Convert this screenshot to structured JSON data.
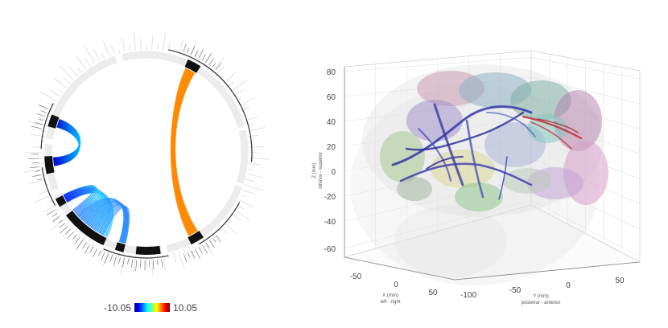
{
  "chart_data": [
    {
      "type": "other",
      "subtype": "connectogram",
      "title": "",
      "colorbar": {
        "min_label": "-10.05",
        "max_label": "10.05",
        "min": -10.05,
        "max": 10.05,
        "colormap": "jet"
      },
      "bundles": [
        {
          "name": "upper-left",
          "color_start": "#0000cc",
          "color_end": "#00ccff"
        },
        {
          "name": "right",
          "color": "#ff8c00"
        },
        {
          "name": "lower-left",
          "color_start": "#1040ff",
          "color_end": "#33ccff"
        }
      ]
    },
    {
      "type": "other",
      "subtype": "3d-brain-tractography",
      "title": "",
      "zlabel": [
        "Z (mm)",
        "inferior - superior"
      ],
      "xlabel": [
        "X (mm)",
        "left - right"
      ],
      "ylabel": [
        "Y (mm)",
        "posterior - anterior"
      ],
      "z_ticks": [
        "80",
        "60",
        "40",
        "20",
        "0",
        "-20",
        "-40",
        "-60"
      ],
      "x_ticks": [
        "-50",
        "0",
        "50"
      ],
      "y_ticks": [
        "-100",
        "-50",
        "0",
        "50"
      ],
      "zlim": [
        -70,
        85
      ],
      "grid": true,
      "colors": {
        "fiber_blue": "#3333aa",
        "fiber_red": "#cc2233"
      }
    }
  ]
}
